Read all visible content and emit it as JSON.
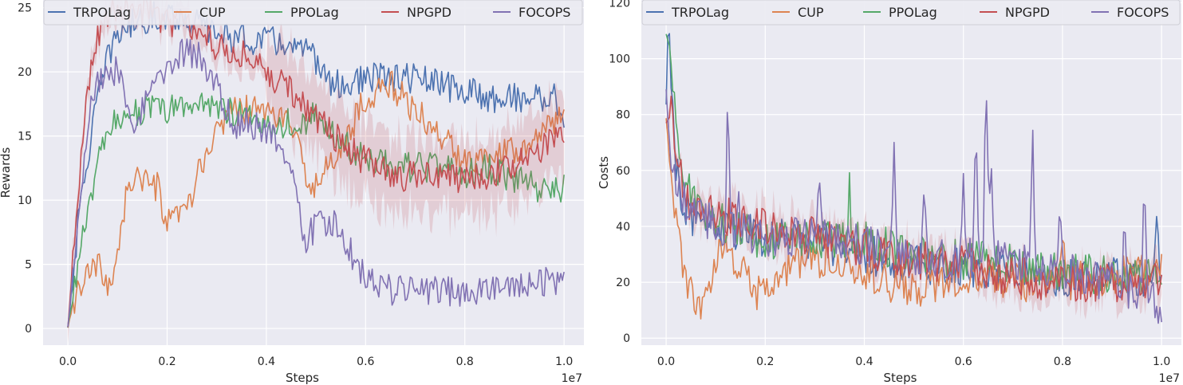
{
  "chart_data": [
    {
      "type": "line",
      "xlabel": "Steps",
      "ylabel": "Rewards",
      "x_multiplier_label": "1e7",
      "xlim": [
        -0.05,
        1.04
      ],
      "ylim": [
        -1.3,
        25.6
      ],
      "xticks": [
        0.0,
        0.2,
        0.4,
        0.6,
        0.8,
        1.0
      ],
      "xtick_labels": [
        "0.0",
        "0.2",
        "0.4",
        "0.6",
        "0.8",
        "1.0"
      ],
      "yticks": [
        0,
        5,
        10,
        15,
        20,
        25
      ],
      "ytick_labels": [
        "0",
        "5",
        "10",
        "15",
        "20",
        "25"
      ],
      "grid": true,
      "legend_position": "top",
      "noise": 1.0,
      "series": [
        {
          "name": "TRPOLag",
          "color": "#4c72b0",
          "points": [
            [
              0,
              0
            ],
            [
              0.02,
              8
            ],
            [
              0.05,
              16
            ],
            [
              0.08,
              21
            ],
            [
              0.1,
              23
            ],
            [
              0.14,
              24
            ],
            [
              0.2,
              24.5
            ],
            [
              0.25,
              24
            ],
            [
              0.3,
              23
            ],
            [
              0.35,
              22.5
            ],
            [
              0.4,
              22.5
            ],
            [
              0.45,
              22
            ],
            [
              0.5,
              21
            ],
            [
              0.53,
              19
            ],
            [
              0.57,
              19
            ],
            [
              0.6,
              19.5
            ],
            [
              0.65,
              19.5
            ],
            [
              0.7,
              19.5
            ],
            [
              0.75,
              19
            ],
            [
              0.8,
              18.5
            ],
            [
              0.85,
              18
            ],
            [
              0.9,
              18
            ],
            [
              0.95,
              18
            ],
            [
              0.98,
              18
            ],
            [
              1.0,
              16.5
            ]
          ]
        },
        {
          "name": "CUP",
          "color": "#dd8452",
          "points": [
            [
              0,
              0
            ],
            [
              0.02,
              3
            ],
            [
              0.04,
              4
            ],
            [
              0.06,
              5
            ],
            [
              0.08,
              3
            ],
            [
              0.1,
              6
            ],
            [
              0.12,
              11
            ],
            [
              0.14,
              12
            ],
            [
              0.16,
              11
            ],
            [
              0.18,
              11
            ],
            [
              0.2,
              8
            ],
            [
              0.22,
              8.5
            ],
            [
              0.25,
              10
            ],
            [
              0.27,
              13
            ],
            [
              0.3,
              15
            ],
            [
              0.32,
              17
            ],
            [
              0.35,
              17
            ],
            [
              0.4,
              17
            ],
            [
              0.45,
              16
            ],
            [
              0.47,
              13
            ],
            [
              0.5,
              11
            ],
            [
              0.55,
              14
            ],
            [
              0.6,
              18
            ],
            [
              0.65,
              19
            ],
            [
              0.7,
              17
            ],
            [
              0.75,
              15
            ],
            [
              0.8,
              13
            ],
            [
              0.85,
              14
            ],
            [
              0.9,
              14
            ],
            [
              0.95,
              15
            ],
            [
              1.0,
              17
            ]
          ]
        },
        {
          "name": "PPOLag",
          "color": "#55a868",
          "points": [
            [
              0,
              0
            ],
            [
              0.02,
              5
            ],
            [
              0.05,
              11
            ],
            [
              0.07,
              14
            ],
            [
              0.1,
              16.5
            ],
            [
              0.14,
              17
            ],
            [
              0.2,
              17
            ],
            [
              0.25,
              17.5
            ],
            [
              0.3,
              17.5
            ],
            [
              0.35,
              16.5
            ],
            [
              0.4,
              16
            ],
            [
              0.45,
              16
            ],
            [
              0.5,
              16.5
            ],
            [
              0.55,
              14.5
            ],
            [
              0.6,
              13
            ],
            [
              0.65,
              13
            ],
            [
              0.7,
              12.5
            ],
            [
              0.75,
              12.5
            ],
            [
              0.8,
              12
            ],
            [
              0.85,
              12.5
            ],
            [
              0.9,
              11.5
            ],
            [
              0.95,
              11
            ],
            [
              1.0,
              11
            ]
          ]
        },
        {
          "name": "NPGPD",
          "color": "#c44e52",
          "points": [
            [
              0,
              0
            ],
            [
              0.02,
              10
            ],
            [
              0.04,
              19
            ],
            [
              0.06,
              23
            ],
            [
              0.08,
              24.5
            ],
            [
              0.1,
              25
            ],
            [
              0.15,
              25
            ],
            [
              0.2,
              24
            ],
            [
              0.25,
              23.5
            ],
            [
              0.3,
              22
            ],
            [
              0.35,
              21.5
            ],
            [
              0.4,
              20
            ],
            [
              0.45,
              18.5
            ],
            [
              0.5,
              16.5
            ],
            [
              0.55,
              14.5
            ],
            [
              0.6,
              13
            ],
            [
              0.65,
              12
            ],
            [
              0.7,
              11.8
            ],
            [
              0.75,
              11.8
            ],
            [
              0.8,
              11.5
            ],
            [
              0.85,
              12
            ],
            [
              0.9,
              12.5
            ],
            [
              0.95,
              14
            ],
            [
              1.0,
              15
            ]
          ]
        },
        {
          "name": "FOCOPS",
          "color": "#8172b3",
          "points": [
            [
              0,
              0
            ],
            [
              0.02,
              9
            ],
            [
              0.04,
              16
            ],
            [
              0.06,
              19.5
            ],
            [
              0.08,
              20
            ],
            [
              0.1,
              20
            ],
            [
              0.12,
              17
            ],
            [
              0.13,
              15
            ],
            [
              0.15,
              17
            ],
            [
              0.18,
              19.5
            ],
            [
              0.2,
              20.5
            ],
            [
              0.23,
              21.5
            ],
            [
              0.26,
              21.5
            ],
            [
              0.3,
              19
            ],
            [
              0.33,
              16
            ],
            [
              0.36,
              16
            ],
            [
              0.4,
              15.5
            ],
            [
              0.44,
              13.5
            ],
            [
              0.46,
              10
            ],
            [
              0.48,
              7
            ],
            [
              0.5,
              8
            ],
            [
              0.53,
              8.5
            ],
            [
              0.56,
              6.5
            ],
            [
              0.6,
              4
            ],
            [
              0.65,
              3
            ],
            [
              0.7,
              2.8
            ],
            [
              0.75,
              3
            ],
            [
              0.8,
              2.8
            ],
            [
              0.85,
              3
            ],
            [
              0.9,
              3
            ],
            [
              0.95,
              3.5
            ],
            [
              1.0,
              4
            ]
          ]
        }
      ]
    },
    {
      "type": "line",
      "xlabel": "Steps",
      "ylabel": "Costs",
      "x_multiplier_label": "1e7",
      "xlim": [
        -0.05,
        1.04
      ],
      "ylim": [
        -2.5,
        121
      ],
      "xticks": [
        0.0,
        0.2,
        0.4,
        0.6,
        0.8,
        1.0
      ],
      "xtick_labels": [
        "0.0",
        "0.2",
        "0.4",
        "0.6",
        "0.8",
        "1.0"
      ],
      "yticks": [
        0,
        20,
        40,
        60,
        80,
        100,
        120
      ],
      "ytick_labels": [
        "0",
        "20",
        "40",
        "60",
        "80",
        "100",
        "120"
      ],
      "grid": true,
      "legend_position": "top",
      "noise": 6.0,
      "series": [
        {
          "name": "TRPOLag",
          "color": "#4c72b0",
          "points": [
            [
              0,
              85
            ],
            [
              0.005,
              118
            ],
            [
              0.015,
              70
            ],
            [
              0.03,
              50
            ],
            [
              0.06,
              42
            ],
            [
              0.1,
              40
            ],
            [
              0.15,
              38
            ],
            [
              0.2,
              36
            ],
            [
              0.3,
              35
            ],
            [
              0.4,
              30
            ],
            [
              0.5,
              27
            ],
            [
              0.6,
              25
            ],
            [
              0.7,
              24
            ],
            [
              0.8,
              22
            ],
            [
              0.9,
              22
            ],
            [
              1.0,
              22
            ]
          ]
        },
        {
          "name": "CUP",
          "color": "#dd8452",
          "points": [
            [
              0,
              80
            ],
            [
              0.01,
              55
            ],
            [
              0.025,
              35
            ],
            [
              0.04,
              20
            ],
            [
              0.06,
              10
            ],
            [
              0.08,
              15
            ],
            [
              0.1,
              28
            ],
            [
              0.12,
              30
            ],
            [
              0.15,
              25
            ],
            [
              0.18,
              15
            ],
            [
              0.2,
              18
            ],
            [
              0.25,
              25
            ],
            [
              0.3,
              28
            ],
            [
              0.35,
              28
            ],
            [
              0.4,
              25
            ],
            [
              0.45,
              20
            ],
            [
              0.5,
              18
            ],
            [
              0.6,
              22
            ],
            [
              0.7,
              20
            ],
            [
              0.8,
              20
            ],
            [
              0.9,
              22
            ],
            [
              1.0,
              24
            ]
          ]
        },
        {
          "name": "PPOLag",
          "color": "#55a868",
          "points": [
            [
              0,
              110
            ],
            [
              0.01,
              100
            ],
            [
              0.02,
              75
            ],
            [
              0.04,
              55
            ],
            [
              0.06,
              48
            ],
            [
              0.1,
              42
            ],
            [
              0.15,
              38
            ],
            [
              0.2,
              35
            ],
            [
              0.3,
              36
            ],
            [
              0.4,
              35
            ],
            [
              0.5,
              30
            ],
            [
              0.6,
              28
            ],
            [
              0.7,
              27
            ],
            [
              0.8,
              24
            ],
            [
              0.9,
              22
            ],
            [
              1.0,
              22
            ]
          ]
        },
        {
          "name": "NPGPD",
          "color": "#c44e52",
          "points": [
            [
              0,
              78
            ],
            [
              0.01,
              80
            ],
            [
              0.02,
              65
            ],
            [
              0.04,
              50
            ],
            [
              0.06,
              46
            ],
            [
              0.1,
              44
            ],
            [
              0.15,
              42
            ],
            [
              0.2,
              40
            ],
            [
              0.3,
              36
            ],
            [
              0.4,
              32
            ],
            [
              0.5,
              28
            ],
            [
              0.6,
              26
            ],
            [
              0.7,
              22
            ],
            [
              0.8,
              20
            ],
            [
              0.9,
              20
            ],
            [
              1.0,
              20
            ]
          ]
        },
        {
          "name": "FOCOPS",
          "color": "#8172b3",
          "points": [
            [
              0,
              90
            ],
            [
              0.01,
              60
            ],
            [
              0.03,
              50
            ],
            [
              0.06,
              45
            ],
            [
              0.1,
              40
            ],
            [
              0.13,
              38
            ],
            [
              0.15,
              40
            ],
            [
              0.2,
              35
            ],
            [
              0.3,
              38
            ],
            [
              0.4,
              33
            ],
            [
              0.5,
              30
            ],
            [
              0.6,
              28
            ],
            [
              0.65,
              30
            ],
            [
              0.7,
              28
            ],
            [
              0.75,
              26
            ],
            [
              0.8,
              24
            ],
            [
              0.9,
              20
            ],
            [
              1.0,
              12
            ]
          ]
        }
      ],
      "spikes": [
        {
          "series": "FOCOPS",
          "x": 0.125,
          "y": 91
        },
        {
          "series": "FOCOPS",
          "x": 0.146,
          "y": 60
        },
        {
          "series": "FOCOPS",
          "x": 0.31,
          "y": 55
        },
        {
          "series": "FOCOPS",
          "x": 0.46,
          "y": 70
        },
        {
          "series": "FOCOPS",
          "x": 0.52,
          "y": 55
        },
        {
          "series": "FOCOPS",
          "x": 0.6,
          "y": 60
        },
        {
          "series": "FOCOPS",
          "x": 0.625,
          "y": 82
        },
        {
          "series": "FOCOPS",
          "x": 0.646,
          "y": 94
        },
        {
          "series": "FOCOPS",
          "x": 0.655,
          "y": 70
        },
        {
          "series": "FOCOPS",
          "x": 0.74,
          "y": 72
        },
        {
          "series": "FOCOPS",
          "x": 0.795,
          "y": 58
        },
        {
          "series": "FOCOPS",
          "x": 0.925,
          "y": 50
        },
        {
          "series": "FOCOPS",
          "x": 0.965,
          "y": 55
        },
        {
          "series": "TRPOLag",
          "x": 0.99,
          "y": 47
        },
        {
          "series": "PPOLag",
          "x": 0.37,
          "y": 58
        },
        {
          "series": "CUP",
          "x": 0.8,
          "y": 38
        }
      ]
    }
  ]
}
